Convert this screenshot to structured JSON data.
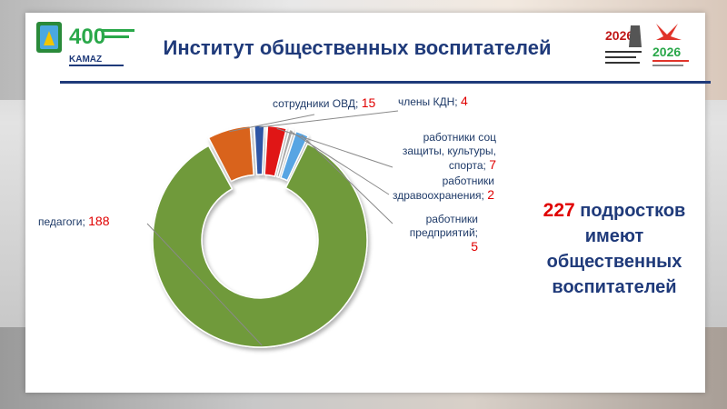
{
  "slide": {
    "title": "Институт общественных воспитателей",
    "logo_left_text": "400",
    "logo_left_brand": "KAMAZ",
    "logo_right_left_text": "2026",
    "logo_right_right_text": "2026"
  },
  "summary": {
    "number": "227",
    "line1_rest": "подростков",
    "line2": "имеют",
    "line3": "общественных",
    "line4": "воспитателей"
  },
  "chart_data": {
    "type": "pie",
    "title": "",
    "categories": [
      "педагоги",
      "сотрудники ОВД",
      "члены КДН",
      "работники соц защиты, культуры, спорта",
      "работники здравоохранения",
      "работники предприятий"
    ],
    "values": [
      188,
      15,
      4,
      7,
      2,
      5
    ],
    "colors": [
      "#6f9a3a",
      "#d9641a",
      "#2f56a6",
      "#e01515",
      "#a8a8a8",
      "#59a5e3"
    ],
    "labels": [
      {
        "text": "педагоги;",
        "value": "188"
      },
      {
        "text": "сотрудники ОВД;",
        "value": "15"
      },
      {
        "text": "члены КДН;",
        "value": "4"
      },
      {
        "text_lines": [
          "работники соц",
          "защиты, культуры,",
          "спорта;"
        ],
        "value": "7"
      },
      {
        "text_lines": [
          "работники",
          "здравоохранения;"
        ],
        "value": "2"
      },
      {
        "text_lines": [
          "работники",
          "предприятий;"
        ],
        "value": "5"
      }
    ]
  }
}
